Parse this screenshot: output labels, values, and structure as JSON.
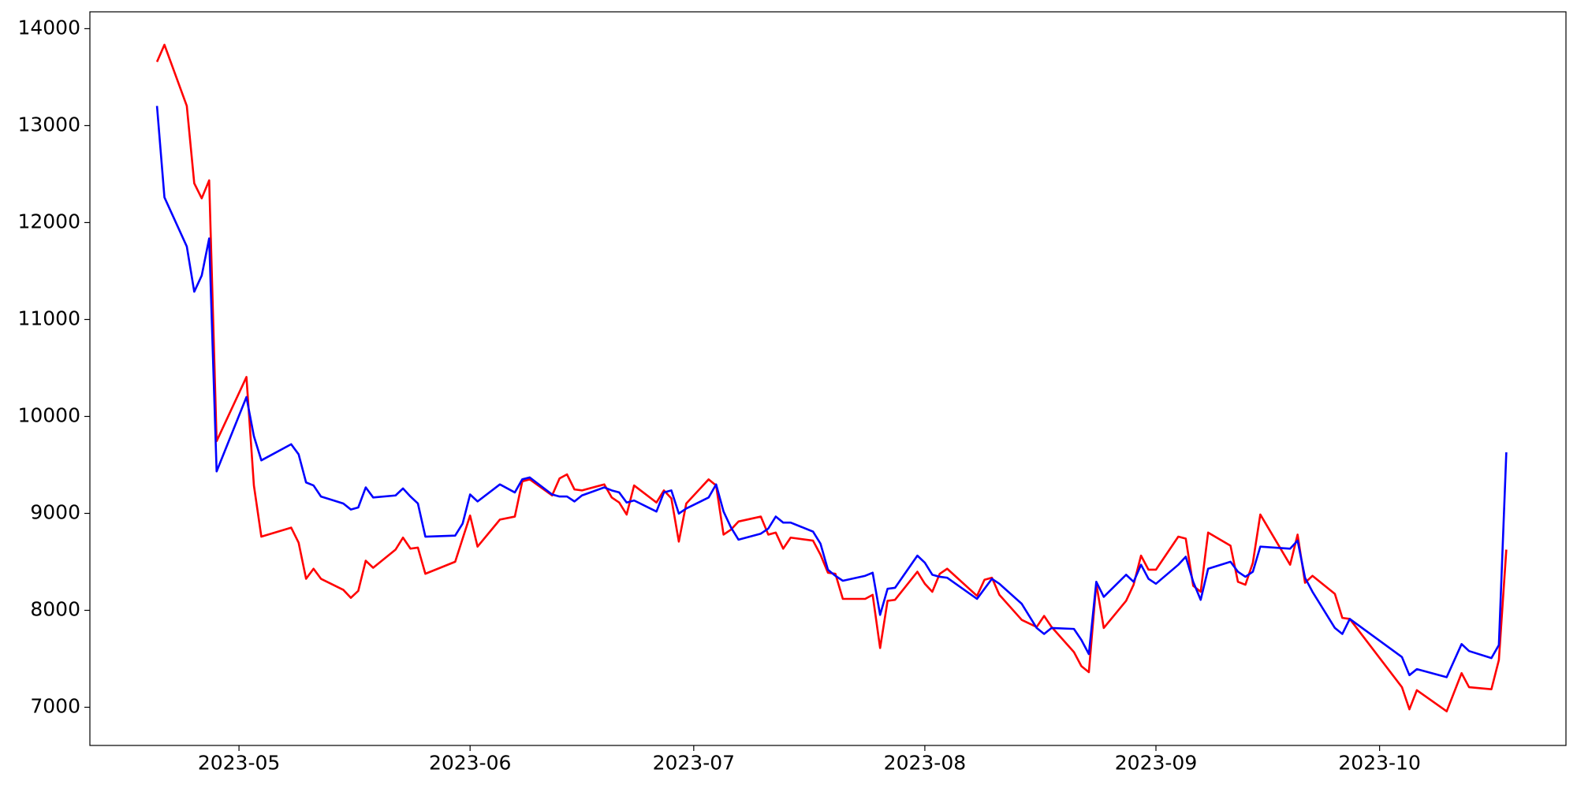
{
  "chart_data": {
    "type": "line",
    "x": [
      "2023-04-20",
      "2023-04-21",
      "2023-04-24",
      "2023-04-25",
      "2023-04-26",
      "2023-04-27",
      "2023-04-28",
      "2023-05-02",
      "2023-05-03",
      "2023-05-04",
      "2023-05-08",
      "2023-05-09",
      "2023-05-10",
      "2023-05-11",
      "2023-05-12",
      "2023-05-15",
      "2023-05-16",
      "2023-05-17",
      "2023-05-18",
      "2023-05-19",
      "2023-05-22",
      "2023-05-23",
      "2023-05-24",
      "2023-05-25",
      "2023-05-26",
      "2023-05-30",
      "2023-05-31",
      "2023-06-01",
      "2023-06-02",
      "2023-06-05",
      "2023-06-07",
      "2023-06-08",
      "2023-06-09",
      "2023-06-12",
      "2023-06-13",
      "2023-06-14",
      "2023-06-15",
      "2023-06-16",
      "2023-06-19",
      "2023-06-20",
      "2023-06-21",
      "2023-06-22",
      "2023-06-23",
      "2023-06-26",
      "2023-06-27",
      "2023-06-28",
      "2023-06-29",
      "2023-06-30",
      "2023-07-03",
      "2023-07-04",
      "2023-07-05",
      "2023-07-06",
      "2023-07-07",
      "2023-07-10",
      "2023-07-11",
      "2023-07-12",
      "2023-07-13",
      "2023-07-14",
      "2023-07-17",
      "2023-07-18",
      "2023-07-19",
      "2023-07-20",
      "2023-07-21",
      "2023-07-24",
      "2023-07-25",
      "2023-07-26",
      "2023-07-27",
      "2023-07-28",
      "2023-07-31",
      "2023-08-01",
      "2023-08-02",
      "2023-08-03",
      "2023-08-04",
      "2023-08-08",
      "2023-08-09",
      "2023-08-10",
      "2023-08-11",
      "2023-08-14",
      "2023-08-16",
      "2023-08-17",
      "2023-08-18",
      "2023-08-21",
      "2023-08-22",
      "2023-08-23",
      "2023-08-24",
      "2023-08-25",
      "2023-08-28",
      "2023-08-29",
      "2023-08-30",
      "2023-08-31",
      "2023-09-01",
      "2023-09-04",
      "2023-09-05",
      "2023-09-06",
      "2023-09-07",
      "2023-09-08",
      "2023-09-11",
      "2023-09-12",
      "2023-09-13",
      "2023-09-14",
      "2023-09-15",
      "2023-09-19",
      "2023-09-20",
      "2023-09-21",
      "2023-09-22",
      "2023-09-25",
      "2023-09-26",
      "2023-09-27",
      "2023-10-04",
      "2023-10-05",
      "2023-10-06",
      "2023-10-10",
      "2023-10-12",
      "2023-10-13",
      "2023-10-16",
      "2023-10-17",
      "2023-10-18"
    ],
    "series": [
      {
        "color": "red",
        "values": [
          13658,
          13834,
          13203,
          12405,
          12250,
          12436,
          9745,
          10407,
          9288,
          8760,
          8853,
          8698,
          8325,
          8429,
          8325,
          8211,
          8129,
          8201,
          8512,
          8439,
          8626,
          8750,
          8636,
          8647,
          8377,
          8501,
          8740,
          8978,
          8657,
          8936,
          8967,
          9330,
          9351,
          9185,
          9361,
          9402,
          9247,
          9237,
          9299,
          9164,
          9112,
          8988,
          9288,
          9112,
          9237,
          9154,
          8709,
          9102,
          9351,
          9288,
          8781,
          8833,
          8916,
          8967,
          8781,
          8802,
          8636,
          8750,
          8719,
          8574,
          8388,
          8377,
          8118,
          8118,
          8160,
          7611,
          8098,
          8108,
          8398,
          8274,
          8191,
          8377,
          8429,
          8149,
          8315,
          8336,
          8160,
          7901,
          7828,
          7942,
          7828,
          7569,
          7424,
          7362,
          8274,
          7818,
          8098,
          8264,
          8564,
          8419,
          8419,
          8760,
          8740,
          8253,
          8191,
          8802,
          8667,
          8294,
          8264,
          8491,
          8988,
          8470,
          8781,
          8284,
          8356,
          8170,
          7922,
          7911,
          7207,
          6979,
          7176,
          6958,
          7352,
          7207,
          7186,
          7487,
          8626
        ]
      },
      {
        "color": "blue",
        "values": [
          13203,
          12260,
          11753,
          11287,
          11453,
          11836,
          9433,
          10200,
          9796,
          9547,
          9713,
          9609,
          9319,
          9288,
          9174,
          9102,
          9040,
          9061,
          9268,
          9164,
          9185,
          9257,
          9174,
          9102,
          8760,
          8771,
          8895,
          9195,
          9123,
          9299,
          9216,
          9351,
          9371,
          9195,
          9174,
          9174,
          9123,
          9185,
          9268,
          9237,
          9216,
          9112,
          9133,
          9019,
          9216,
          9237,
          8998,
          9050,
          9164,
          9299,
          9019,
          8854,
          8729,
          8791,
          8843,
          8967,
          8905,
          8905,
          8812,
          8688,
          8419,
          8356,
          8305,
          8356,
          8388,
          7953,
          8222,
          8232,
          8564,
          8491,
          8367,
          8346,
          8336,
          8118,
          8222,
          8325,
          8274,
          8067,
          7818,
          7756,
          7818,
          7808,
          7694,
          7549,
          8294,
          8139,
          8367,
          8294,
          8470,
          8325,
          8274,
          8470,
          8553,
          8294,
          8108,
          8429,
          8501,
          8398,
          8346,
          8398,
          8657,
          8636,
          8719,
          8336,
          8191,
          7818,
          7756,
          7911,
          7518,
          7331,
          7393,
          7310,
          7652,
          7580,
          7507,
          7642,
          9630
        ]
      }
    ],
    "xlim": [
      "2023-04-11",
      "2023-10-26"
    ],
    "xticks": [
      {
        "value": "2023-05-01",
        "label": "2023-05"
      },
      {
        "value": "2023-06-01",
        "label": "2023-06"
      },
      {
        "value": "2023-07-01",
        "label": "2023-07"
      },
      {
        "value": "2023-08-01",
        "label": "2023-08"
      },
      {
        "value": "2023-09-01",
        "label": "2023-09"
      },
      {
        "value": "2023-10-01",
        "label": "2023-10"
      }
    ],
    "ylim": [
      6606,
      14174
    ],
    "yticks": [
      7000,
      8000,
      9000,
      10000,
      11000,
      12000,
      13000,
      14000
    ],
    "grid": false
  }
}
